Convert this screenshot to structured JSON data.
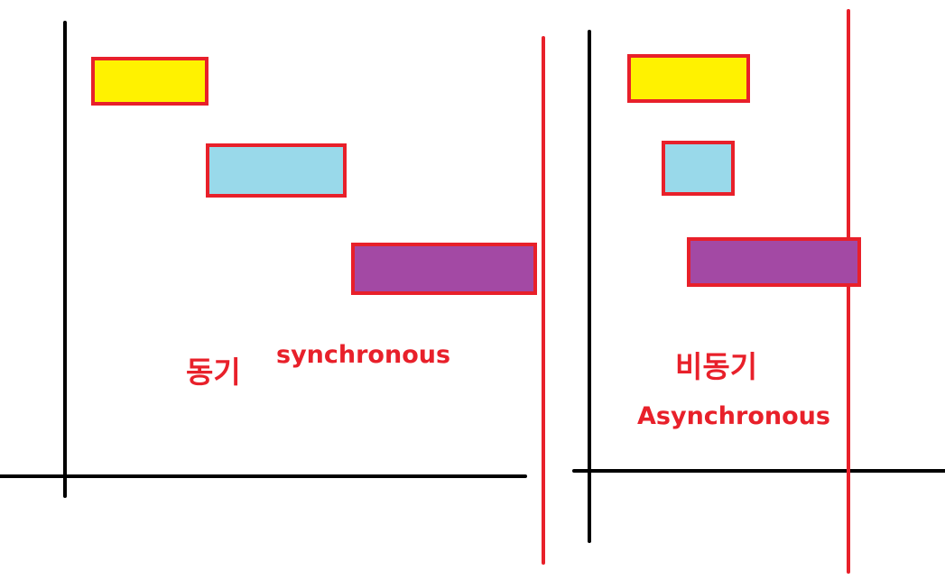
{
  "colors": {
    "background": "#ffffff",
    "axis": "#000000",
    "boundary": "#e8202a",
    "outline": "#e8202a",
    "text": "#e8202a",
    "task_yellow": "#fff200",
    "task_blue": "#99d9ea",
    "task_purple": "#a349a4"
  },
  "sync": {
    "label_ko": "동기",
    "label_en": "synchronous"
  },
  "async": {
    "label_ko": "비동기",
    "label_en": "Asynchronous"
  }
}
